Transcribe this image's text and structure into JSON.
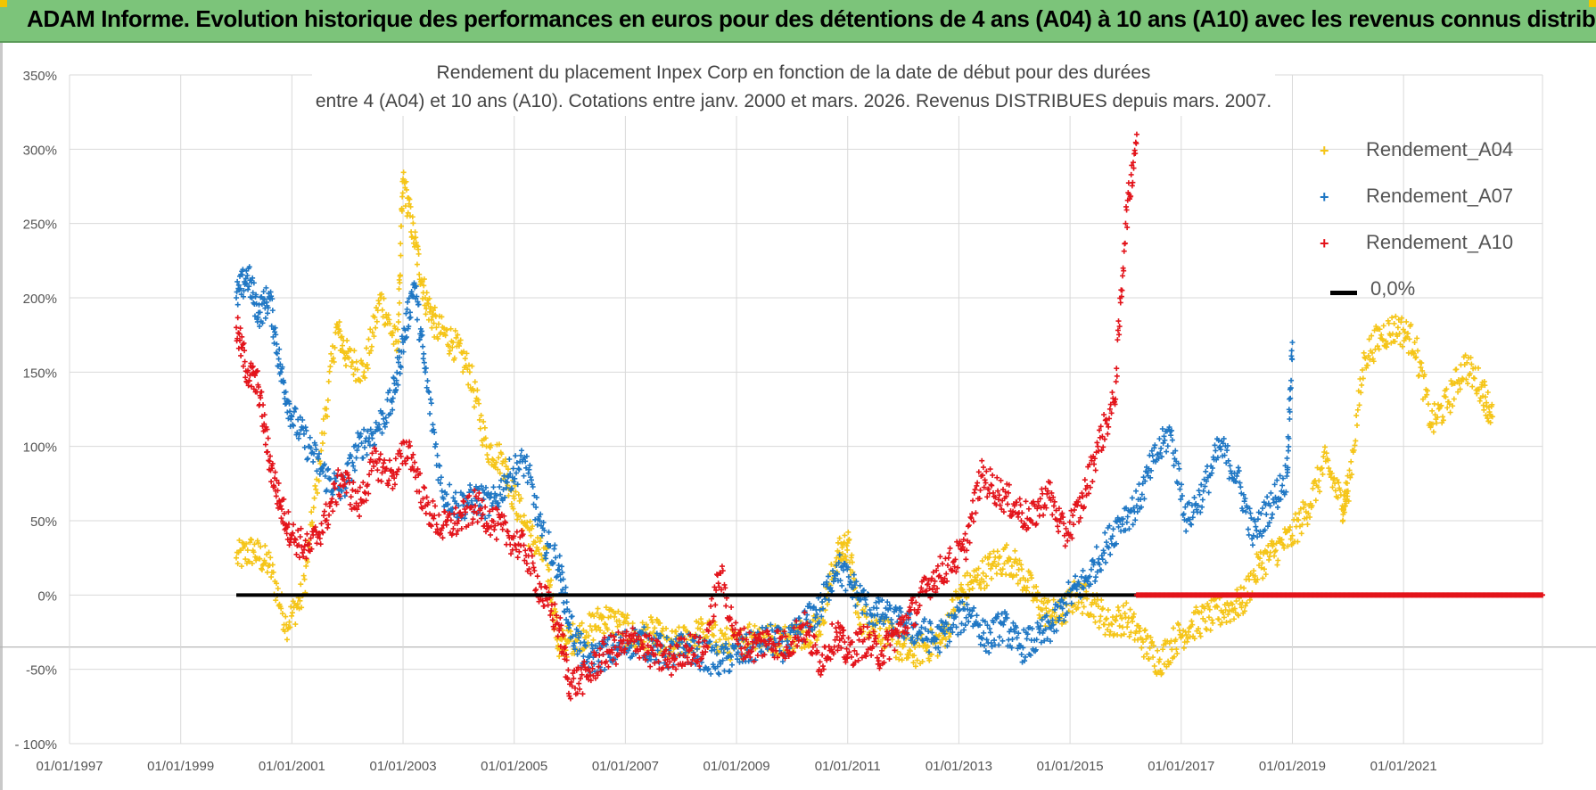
{
  "banner": {
    "title": "ADAM Informe. Evolution historique des performances en euros pour des détentions de 4 ans (A04) à 10 ans (A10) avec les revenus connus distribués"
  },
  "chart_data": {
    "type": "scatter",
    "title_line1": "Rendement du placement Inpex Corp en fonction de la date de début pour des durées",
    "title_line2": "entre 4 (A04) et 10 ans (A10). Cotations entre janv. 2000 et mars. 2026. Revenus DISTRIBUES depuis mars. 2007.",
    "y_axis": {
      "min": -100,
      "max": 350,
      "step": 50,
      "tick_labels": [
        "- 100%",
        "-50%",
        "0%",
        "50%",
        "100%",
        "150%",
        "200%",
        "250%",
        "300%",
        "350%"
      ]
    },
    "x_axis": {
      "min_year": 1997,
      "max_year": 2023.5,
      "tick_labels": [
        "01/01/1997",
        "01/01/1999",
        "01/01/2001",
        "01/01/2003",
        "01/01/2005",
        "01/01/2007",
        "01/01/2009",
        "01/01/2011",
        "01/01/2013",
        "01/01/2015",
        "01/01/2017",
        "01/01/2019",
        "01/01/2021"
      ]
    },
    "zero_line": {
      "label": "0,0%",
      "x_start": 2000.0,
      "x_end": 2016.2,
      "value": 0
    },
    "series": [
      {
        "name": "Rendement_A04",
        "color": "#f5c518",
        "x": [
          2000.0,
          2000.3,
          2000.6,
          2000.9,
          2001.2,
          2001.5,
          2001.8,
          2002.0,
          2002.3,
          2002.6,
          2002.9,
          2003.0,
          2003.2,
          2003.4,
          2003.6,
          2003.9,
          2004.2,
          2004.5,
          2004.8,
          2005.0,
          2005.3,
          2005.6,
          2005.8,
          2006.0,
          2006.3,
          2006.6,
          2006.9,
          2007.2,
          2007.5,
          2007.8,
          2008.1,
          2008.4,
          2008.7,
          2009.0,
          2009.3,
          2009.6,
          2009.9,
          2010.2,
          2010.5,
          2010.8,
          2011.0,
          2011.2,
          2011.5,
          2011.8,
          2012.1,
          2012.4,
          2012.7,
          2013.0,
          2013.3,
          2013.6,
          2013.9,
          2014.2,
          2014.5,
          2014.8,
          2015.1,
          2015.4,
          2015.7,
          2016.0,
          2016.3,
          2016.6,
          2016.9,
          2017.2,
          2017.5,
          2017.8,
          2018.1,
          2018.4,
          2018.7,
          2019.0,
          2019.3,
          2019.6,
          2019.9,
          2020.0,
          2020.3,
          2020.6,
          2020.9,
          2021.2,
          2021.5,
          2021.8,
          2022.1,
          2022.4,
          2022.6
        ],
        "y": [
          25,
          30,
          20,
          -20,
          0,
          90,
          180,
          160,
          150,
          200,
          165,
          280,
          240,
          200,
          180,
          170,
          150,
          100,
          90,
          65,
          40,
          20,
          -35,
          -30,
          -25,
          -15,
          -20,
          -30,
          -25,
          -35,
          -30,
          -25,
          -30,
          -35,
          -25,
          -30,
          -30,
          -25,
          -20,
          25,
          35,
          -15,
          -20,
          -30,
          -40,
          -35,
          -30,
          0,
          10,
          20,
          25,
          10,
          -10,
          -15,
          0,
          -5,
          -20,
          -15,
          -30,
          -45,
          -30,
          -20,
          -15,
          -10,
          -5,
          20,
          30,
          40,
          60,
          90,
          60,
          70,
          160,
          175,
          180,
          170,
          115,
          130,
          155,
          140,
          120
        ]
      },
      {
        "name": "Rendement_A07",
        "color": "#1f77c4",
        "x": [
          2000.0,
          2000.2,
          2000.4,
          2000.6,
          2000.8,
          2001.0,
          2001.3,
          2001.6,
          2001.9,
          2002.2,
          2002.5,
          2002.8,
          2003.0,
          2003.2,
          2003.4,
          2003.7,
          2004.0,
          2004.3,
          2004.6,
          2004.9,
          2005.2,
          2005.5,
          2005.8,
          2006.0,
          2006.3,
          2006.6,
          2006.9,
          2007.2,
          2007.5,
          2007.8,
          2008.1,
          2008.4,
          2008.7,
          2009.0,
          2009.3,
          2009.6,
          2009.9,
          2010.2,
          2010.5,
          2010.8,
          2011.1,
          2011.4,
          2011.7,
          2012.0,
          2012.3,
          2012.6,
          2012.9,
          2013.2,
          2013.5,
          2013.8,
          2014.1,
          2014.4,
          2014.7,
          2015.0,
          2015.3,
          2015.6,
          2015.9,
          2016.2,
          2016.5,
          2016.8,
          2017.1,
          2017.4,
          2017.7,
          2018.0,
          2018.3,
          2018.6,
          2018.9,
          2019.0
        ],
        "y": [
          200,
          215,
          190,
          200,
          150,
          120,
          100,
          80,
          70,
          100,
          110,
          130,
          170,
          210,
          150,
          70,
          60,
          65,
          60,
          80,
          90,
          40,
          20,
          -20,
          -45,
          -40,
          -35,
          -30,
          -35,
          -40,
          -35,
          -40,
          -45,
          -40,
          -35,
          -30,
          -35,
          -20,
          -10,
          20,
          5,
          -10,
          -15,
          -20,
          -25,
          -30,
          -20,
          -10,
          -30,
          -20,
          -35,
          -30,
          -20,
          0,
          10,
          30,
          50,
          60,
          90,
          110,
          50,
          70,
          100,
          80,
          40,
          60,
          80,
          170
        ]
      },
      {
        "name": "Rendement_A10",
        "color": "#e3141b",
        "x": [
          2000.0,
          2000.2,
          2000.4,
          2000.6,
          2000.8,
          2001.0,
          2001.3,
          2001.6,
          2001.9,
          2002.2,
          2002.5,
          2002.8,
          2003.1,
          2003.4,
          2003.7,
          2004.0,
          2004.3,
          2004.6,
          2004.9,
          2005.2,
          2005.5,
          2005.8,
          2006.0,
          2006.3,
          2006.6,
          2006.9,
          2007.2,
          2007.5,
          2007.8,
          2008.1,
          2008.4,
          2008.7,
          2009.0,
          2009.3,
          2009.6,
          2009.9,
          2010.2,
          2010.5,
          2010.8,
          2011.0,
          2011.3,
          2011.6,
          2011.9,
          2012.2,
          2012.5,
          2012.8,
          2013.1,
          2013.4,
          2013.7,
          2014.0,
          2014.3,
          2014.6,
          2014.9,
          2015.2,
          2015.5,
          2015.8,
          2016.0,
          2016.2
        ],
        "y": [
          180,
          150,
          140,
          90,
          60,
          40,
          30,
          50,
          80,
          60,
          90,
          80,
          100,
          60,
          45,
          50,
          60,
          50,
          40,
          30,
          0,
          -20,
          -60,
          -55,
          -40,
          -35,
          -30,
          -40,
          -45,
          -35,
          -40,
          15,
          -30,
          -35,
          -30,
          -35,
          -20,
          -45,
          -25,
          -40,
          -30,
          -40,
          -25,
          -10,
          10,
          20,
          30,
          80,
          70,
          60,
          50,
          70,
          40,
          60,
          100,
          130,
          250,
          310
        ]
      }
    ]
  },
  "legend": {
    "items": [
      {
        "label": "Rendement_A04",
        "color": "#f5c518"
      },
      {
        "label": "Rendement_A07",
        "color": "#1f77c4"
      },
      {
        "label": "Rendement_A10",
        "color": "#e3141b"
      },
      {
        "label": "0,0%",
        "color": "#000000"
      }
    ]
  }
}
